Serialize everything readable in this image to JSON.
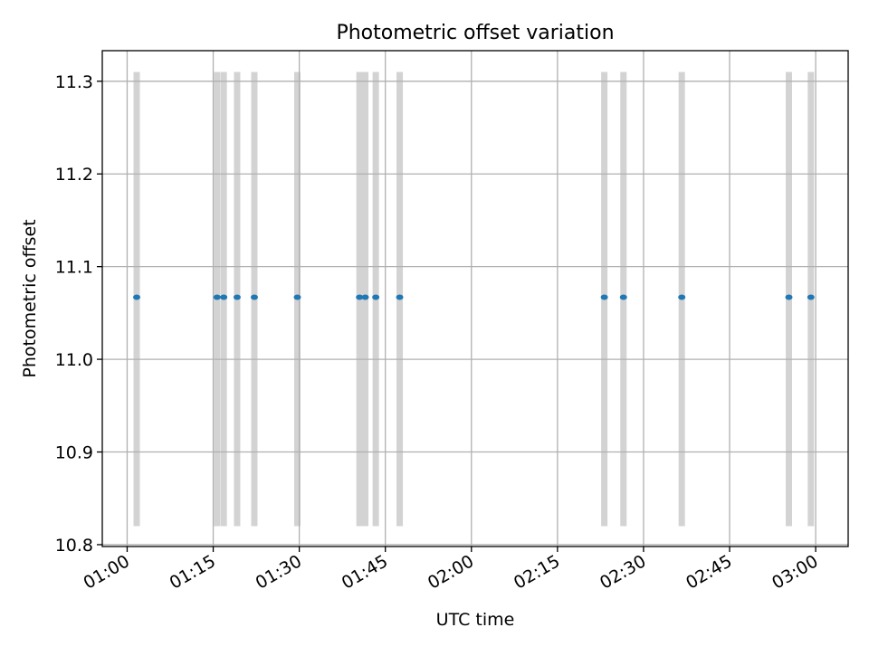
{
  "chart_data": {
    "type": "scatter",
    "title": "Photometric offset variation",
    "xlabel": "UTC time",
    "ylabel": "Photometric offset",
    "xlim": [
      "00:55:40",
      "03:05:40"
    ],
    "ylim": [
      10.798,
      11.333
    ],
    "x_ticks": [
      "01:00",
      "01:15",
      "01:30",
      "01:45",
      "02:00",
      "02:15",
      "02:30",
      "02:45",
      "03:00"
    ],
    "y_ticks": [
      10.8,
      10.9,
      11.0,
      11.1,
      11.2,
      11.3
    ],
    "grid": true,
    "band_range": [
      10.82,
      11.31
    ],
    "points": [
      {
        "x": "01:01:40",
        "y": 11.067
      },
      {
        "x": "01:15:40",
        "y": 11.067
      },
      {
        "x": "01:16:50",
        "y": 11.067
      },
      {
        "x": "01:19:10",
        "y": 11.067
      },
      {
        "x": "01:22:10",
        "y": 11.067
      },
      {
        "x": "01:29:40",
        "y": 11.067
      },
      {
        "x": "01:40:30",
        "y": 11.067
      },
      {
        "x": "01:41:30",
        "y": 11.067
      },
      {
        "x": "01:43:20",
        "y": 11.067
      },
      {
        "x": "01:47:30",
        "y": 11.067
      },
      {
        "x": "02:23:10",
        "y": 11.067
      },
      {
        "x": "02:26:30",
        "y": 11.067
      },
      {
        "x": "02:36:40",
        "y": 11.067
      },
      {
        "x": "02:55:20",
        "y": 11.067
      },
      {
        "x": "02:59:10",
        "y": 11.067
      }
    ],
    "colors": {
      "points": "#1f77b4",
      "bands": "#d3d3d3",
      "grid": "#b0b0b0"
    }
  }
}
